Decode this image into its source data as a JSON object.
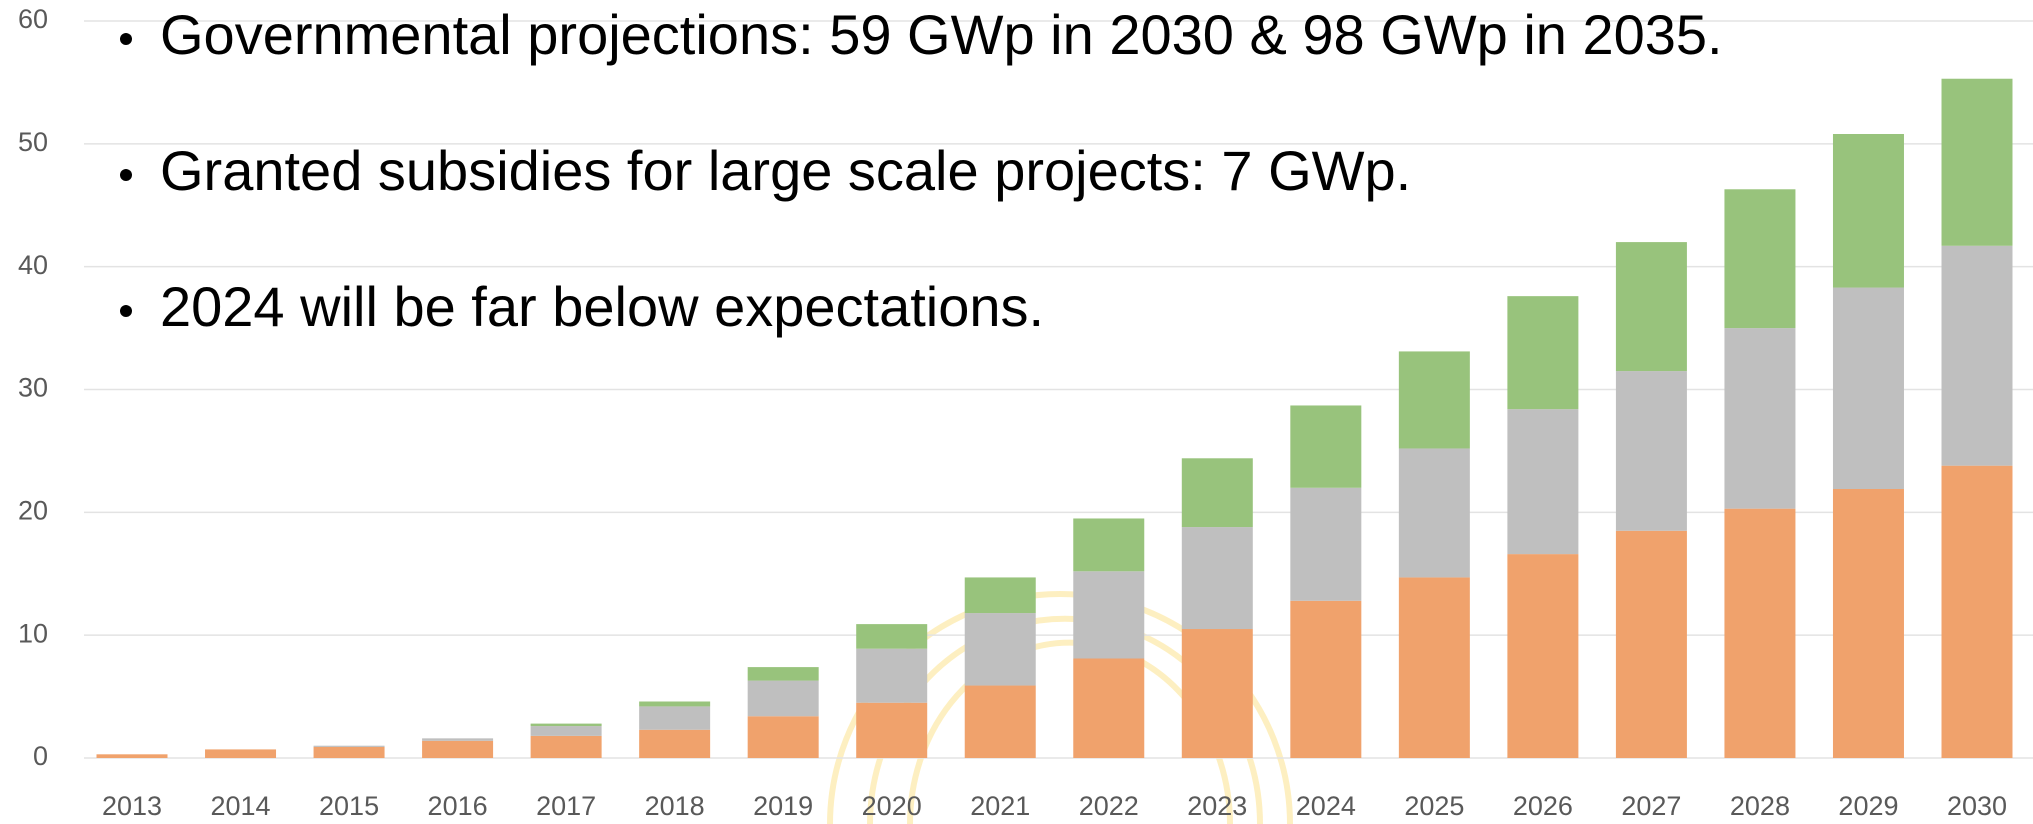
{
  "chart_data": {
    "type": "stacked_bar",
    "annotations": [
      "Governmental projections: 59 GWp in 2030 & 98 GWp in 2035.",
      "Granted subsidies for large scale projects: 7 GWp.",
      "2024 will be far below expectations."
    ],
    "categories": [
      "2013",
      "2014",
      "2015",
      "2016",
      "2017",
      "2018",
      "2019",
      "2020",
      "2021",
      "2022",
      "2023",
      "2024",
      "2025",
      "2026",
      "2027",
      "2028",
      "2029",
      "2030"
    ],
    "series": [
      {
        "color": "#f0a26c",
        "values": [
          0.3,
          0.7,
          0.9,
          1.4,
          1.8,
          2.3,
          3.4,
          4.5,
          5.9,
          8.1,
          10.5,
          12.8,
          14.7,
          16.6,
          18.5,
          20.3,
          21.9,
          23.8
        ]
      },
      {
        "color": "#bfbfbf",
        "values": [
          0,
          0,
          0.1,
          0.2,
          0.8,
          1.9,
          2.9,
          4.4,
          5.9,
          7.1,
          8.3,
          9.2,
          10.5,
          11.8,
          13.0,
          14.7,
          16.4,
          17.9
        ]
      },
      {
        "color": "#98c37c",
        "values": [
          0,
          0,
          0,
          0,
          0.2,
          0.4,
          1.1,
          2.0,
          2.9,
          4.3,
          5.6,
          6.7,
          7.9,
          9.2,
          10.5,
          11.3,
          12.5,
          13.6
        ]
      }
    ],
    "ylim": [
      0,
      60
    ],
    "yticks": [
      0,
      10,
      20,
      30,
      40,
      50,
      60
    ],
    "grid": true
  }
}
